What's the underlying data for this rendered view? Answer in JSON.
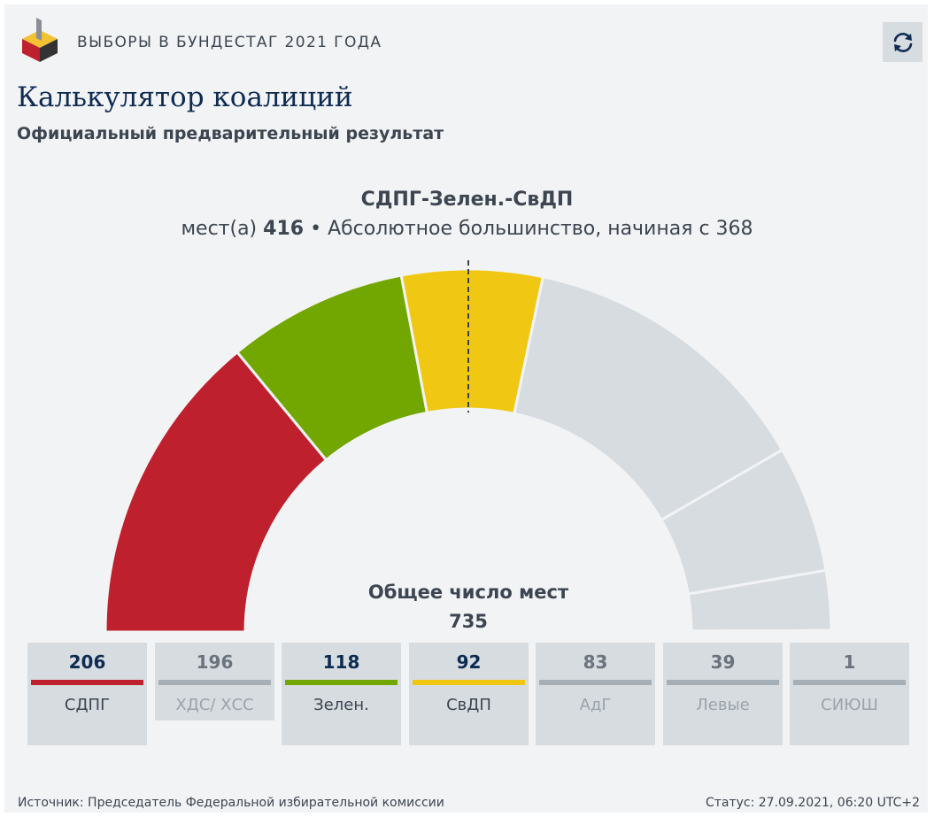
{
  "header": {
    "title": "ВЫБОРЫ В БУНДЕСТАГ 2021 ГОДА"
  },
  "page": {
    "title": "Калькулятор коалиций",
    "subtitle": "Официальный предварительный результат"
  },
  "coalition": {
    "name": "СДПГ-Зелен.-СвДП",
    "seats_label": "мест(а)",
    "seats": "416",
    "majority_text": "• Абсолютное большинство, начиная с 368"
  },
  "total": {
    "label": "Общее число мест",
    "value": "735"
  },
  "icons": {
    "refresh": "refresh-icon",
    "logo": "ballot-box-logo-icon"
  },
  "colors": {
    "inactive": "#d7dce1",
    "inactive_bar": "#a6aeb6",
    "title": "#0e2b52",
    "text": "#3c4550"
  },
  "chart_data": {
    "type": "semicircle-parliament",
    "total": 735,
    "majority": 368,
    "parties": [
      {
        "name": "СДПГ",
        "value": 206,
        "color": "#be202d",
        "in_coalition": true
      },
      {
        "name": "ХДС/ ХСС",
        "value": 196,
        "color": "#a6aeb6",
        "in_coalition": false
      },
      {
        "name": "Зелен.",
        "value": 118,
        "color": "#72a600",
        "in_coalition": true
      },
      {
        "name": "СвДП",
        "value": 92,
        "color": "#f0c814",
        "in_coalition": true
      },
      {
        "name": "АдГ",
        "value": 83,
        "color": "#a6aeb6",
        "in_coalition": false
      },
      {
        "name": "Левые",
        "value": 39,
        "color": "#a6aeb6",
        "in_coalition": false
      },
      {
        "name": "СИЮШ",
        "value": 1,
        "color": "#a6aeb6",
        "in_coalition": false
      }
    ]
  },
  "footer": {
    "source": "Источник: Председатель Федеральной избирательной комиссии",
    "status": "Статус: 27.09.2021, 06:20 UTC+2"
  }
}
